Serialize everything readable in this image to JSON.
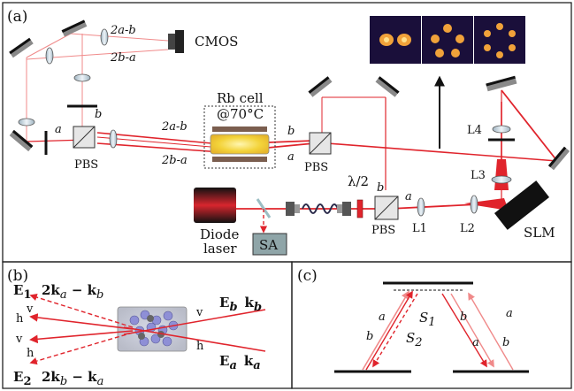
{
  "panels": {
    "a": "(a)",
    "b": "(b)",
    "c": "(c)"
  },
  "panel_a": {
    "cmos": "CMOS",
    "beam_2a_b_top": "2a-b",
    "beam_2b_a_top": "2b-a",
    "beam_a_left": "a",
    "beam_b_left": "b",
    "pbs_left": "PBS",
    "rb_cell_line1": "Rb cell",
    "rb_cell_line2": "@70°C",
    "beam_2a_b_mid": "2a-b",
    "beam_2b_a_mid": "2b-a",
    "beam_b_right": "b",
    "beam_a_right": "a",
    "pbs_mid": "PBS",
    "half_wave": "λ/2",
    "beam_b_lower": "b",
    "beam_a_lower": "a",
    "pbs_lower": "PBS",
    "diode_line1": "Diode",
    "diode_line2": "laser",
    "sa": "SA",
    "l1": "L1",
    "l2": "L2",
    "l3": "L3",
    "l4": "L4",
    "slm": "SLM"
  },
  "panel_b": {
    "e1": "E",
    "e1_sub": "1",
    "e1_wave": "2k",
    "e1_wave_sub1": "a",
    "e1_wave_mid": " − k",
    "e1_wave_sub2": "b",
    "e2": "E",
    "e2_sub": "2",
    "e2_wave": "2k",
    "e2_wave_sub1": "b",
    "e2_wave_mid": " − k",
    "e2_wave_sub2": "a",
    "eb": "E",
    "eb_sub": "b",
    "kb": "k",
    "kb_sub": "b",
    "ea": "E",
    "ea_sub": "a",
    "ka": "k",
    "ka_sub": "a",
    "v_left_top": "v",
    "h_left_mid": "h",
    "v_left_mid": "v",
    "h_left_bottom": "h",
    "v_right": "v",
    "h_right": "h"
  },
  "panel_c": {
    "left_a": "a",
    "left_b": "b",
    "s1": "S",
    "s1_sub": "1",
    "s2": "S",
    "s2_sub": "2",
    "right_b": "b",
    "right_a_up": "a",
    "right_a_down": "a",
    "right_b_down": "b"
  },
  "colors": {
    "beam": "#e0242c",
    "beam_light": "#f08a8a",
    "frame": "#222222",
    "cell_glow": "#f3d33a",
    "sa_box": "#8fa5a8"
  }
}
